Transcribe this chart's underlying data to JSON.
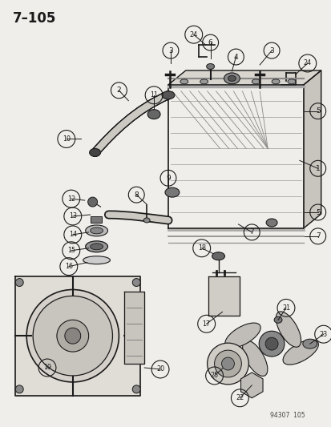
{
  "title": "7–105",
  "watermark": "94307  105",
  "bg_color": "#f0eeea",
  "fig_width": 4.14,
  "fig_height": 5.33,
  "dpi": 100,
  "lc": "#1a1a1a",
  "gray1": "#888888",
  "gray2": "#aaaaaa",
  "gray3": "#cccccc",
  "gray4": "#666666"
}
